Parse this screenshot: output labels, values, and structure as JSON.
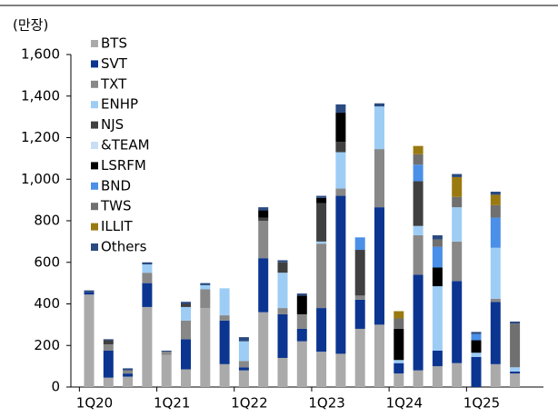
{
  "chart_data": {
    "type": "bar",
    "stacked": true,
    "title": "(만장)",
    "categories": [
      "1Q20",
      null,
      null,
      null,
      "1Q21",
      null,
      null,
      null,
      "1Q22",
      null,
      null,
      null,
      "1Q23",
      null,
      null,
      null,
      "1Q24",
      null,
      null,
      null,
      "1Q25",
      null,
      null
    ],
    "series": [
      {
        "name": "BTS",
        "color": "#aaaaaa",
        "values": [
          445,
          45,
          50,
          385,
          155,
          85,
          380,
          110,
          80,
          360,
          140,
          220,
          170,
          160,
          280,
          300,
          65,
          80,
          100,
          115,
          0,
          110,
          65
        ]
      },
      {
        "name": "SVT",
        "color": "#0b3590",
        "values": [
          10,
          130,
          15,
          115,
          0,
          145,
          0,
          210,
          15,
          260,
          210,
          60,
          210,
          760,
          140,
          565,
          50,
          460,
          75,
          395,
          145,
          300,
          10
        ]
      },
      {
        "name": "TXT",
        "color": "#888888",
        "values": [
          0,
          30,
          15,
          50,
          15,
          90,
          90,
          25,
          30,
          180,
          30,
          70,
          310,
          35,
          20,
          280,
          0,
          190,
          0,
          190,
          0,
          15,
          0
        ]
      },
      {
        "name": "ENHP",
        "color": "#9dcdf5",
        "values": [
          0,
          0,
          0,
          40,
          0,
          65,
          20,
          130,
          95,
          0,
          170,
          0,
          10,
          175,
          0,
          205,
          15,
          45,
          310,
          165,
          20,
          245,
          20
        ]
      },
      {
        "name": "NJS",
        "color": "#404040",
        "values": [
          0,
          20,
          0,
          0,
          0,
          15,
          0,
          0,
          0,
          15,
          50,
          0,
          185,
          50,
          220,
          0,
          0,
          215,
          0,
          0,
          0,
          0,
          0
        ]
      },
      {
        "name": "&TEAM",
        "color": "#c9ddf7",
        "values": [
          0,
          0,
          0,
          0,
          0,
          0,
          0,
          0,
          0,
          0,
          0,
          0,
          0,
          0,
          0,
          0,
          0,
          0,
          0,
          0,
          0,
          0,
          0
        ]
      },
      {
        "name": "LSRFM",
        "color": "#000000",
        "values": [
          0,
          0,
          0,
          0,
          0,
          0,
          0,
          0,
          0,
          35,
          0,
          90,
          25,
          140,
          0,
          0,
          150,
          0,
          90,
          0,
          60,
          0,
          0
        ]
      },
      {
        "name": "BND",
        "color": "#4a8fe8",
        "values": [
          0,
          0,
          0,
          0,
          0,
          0,
          0,
          0,
          0,
          0,
          0,
          0,
          0,
          0,
          60,
          0,
          0,
          80,
          100,
          0,
          30,
          145,
          0
        ]
      },
      {
        "name": "TWS",
        "color": "#707070",
        "values": [
          0,
          0,
          0,
          0,
          0,
          0,
          0,
          0,
          0,
          0,
          0,
          0,
          0,
          0,
          0,
          0,
          50,
          50,
          35,
          50,
          0,
          60,
          210
        ]
      },
      {
        "name": "ILLIT",
        "color": "#9a7a10",
        "values": [
          0,
          0,
          0,
          0,
          0,
          0,
          0,
          0,
          0,
          0,
          0,
          0,
          0,
          0,
          0,
          0,
          35,
          40,
          0,
          95,
          0,
          50,
          0
        ]
      },
      {
        "name": "Others",
        "color": "#2a4a80",
        "values": [
          10,
          5,
          10,
          10,
          5,
          10,
          10,
          0,
          20,
          15,
          10,
          10,
          10,
          40,
          0,
          15,
          0,
          0,
          20,
          15,
          10,
          15,
          10
        ]
      }
    ],
    "ylim": [
      0,
      1600
    ],
    "yticks": [
      0,
      200,
      400,
      600,
      800,
      {
        "value": 1000,
        "label": "1,000"
      },
      {
        "value": 1200,
        "label": "1,200"
      },
      {
        "value": 1400,
        "label": "1,400"
      },
      {
        "value": 1600,
        "label": "1,600"
      }
    ],
    "legend": "upper left"
  }
}
